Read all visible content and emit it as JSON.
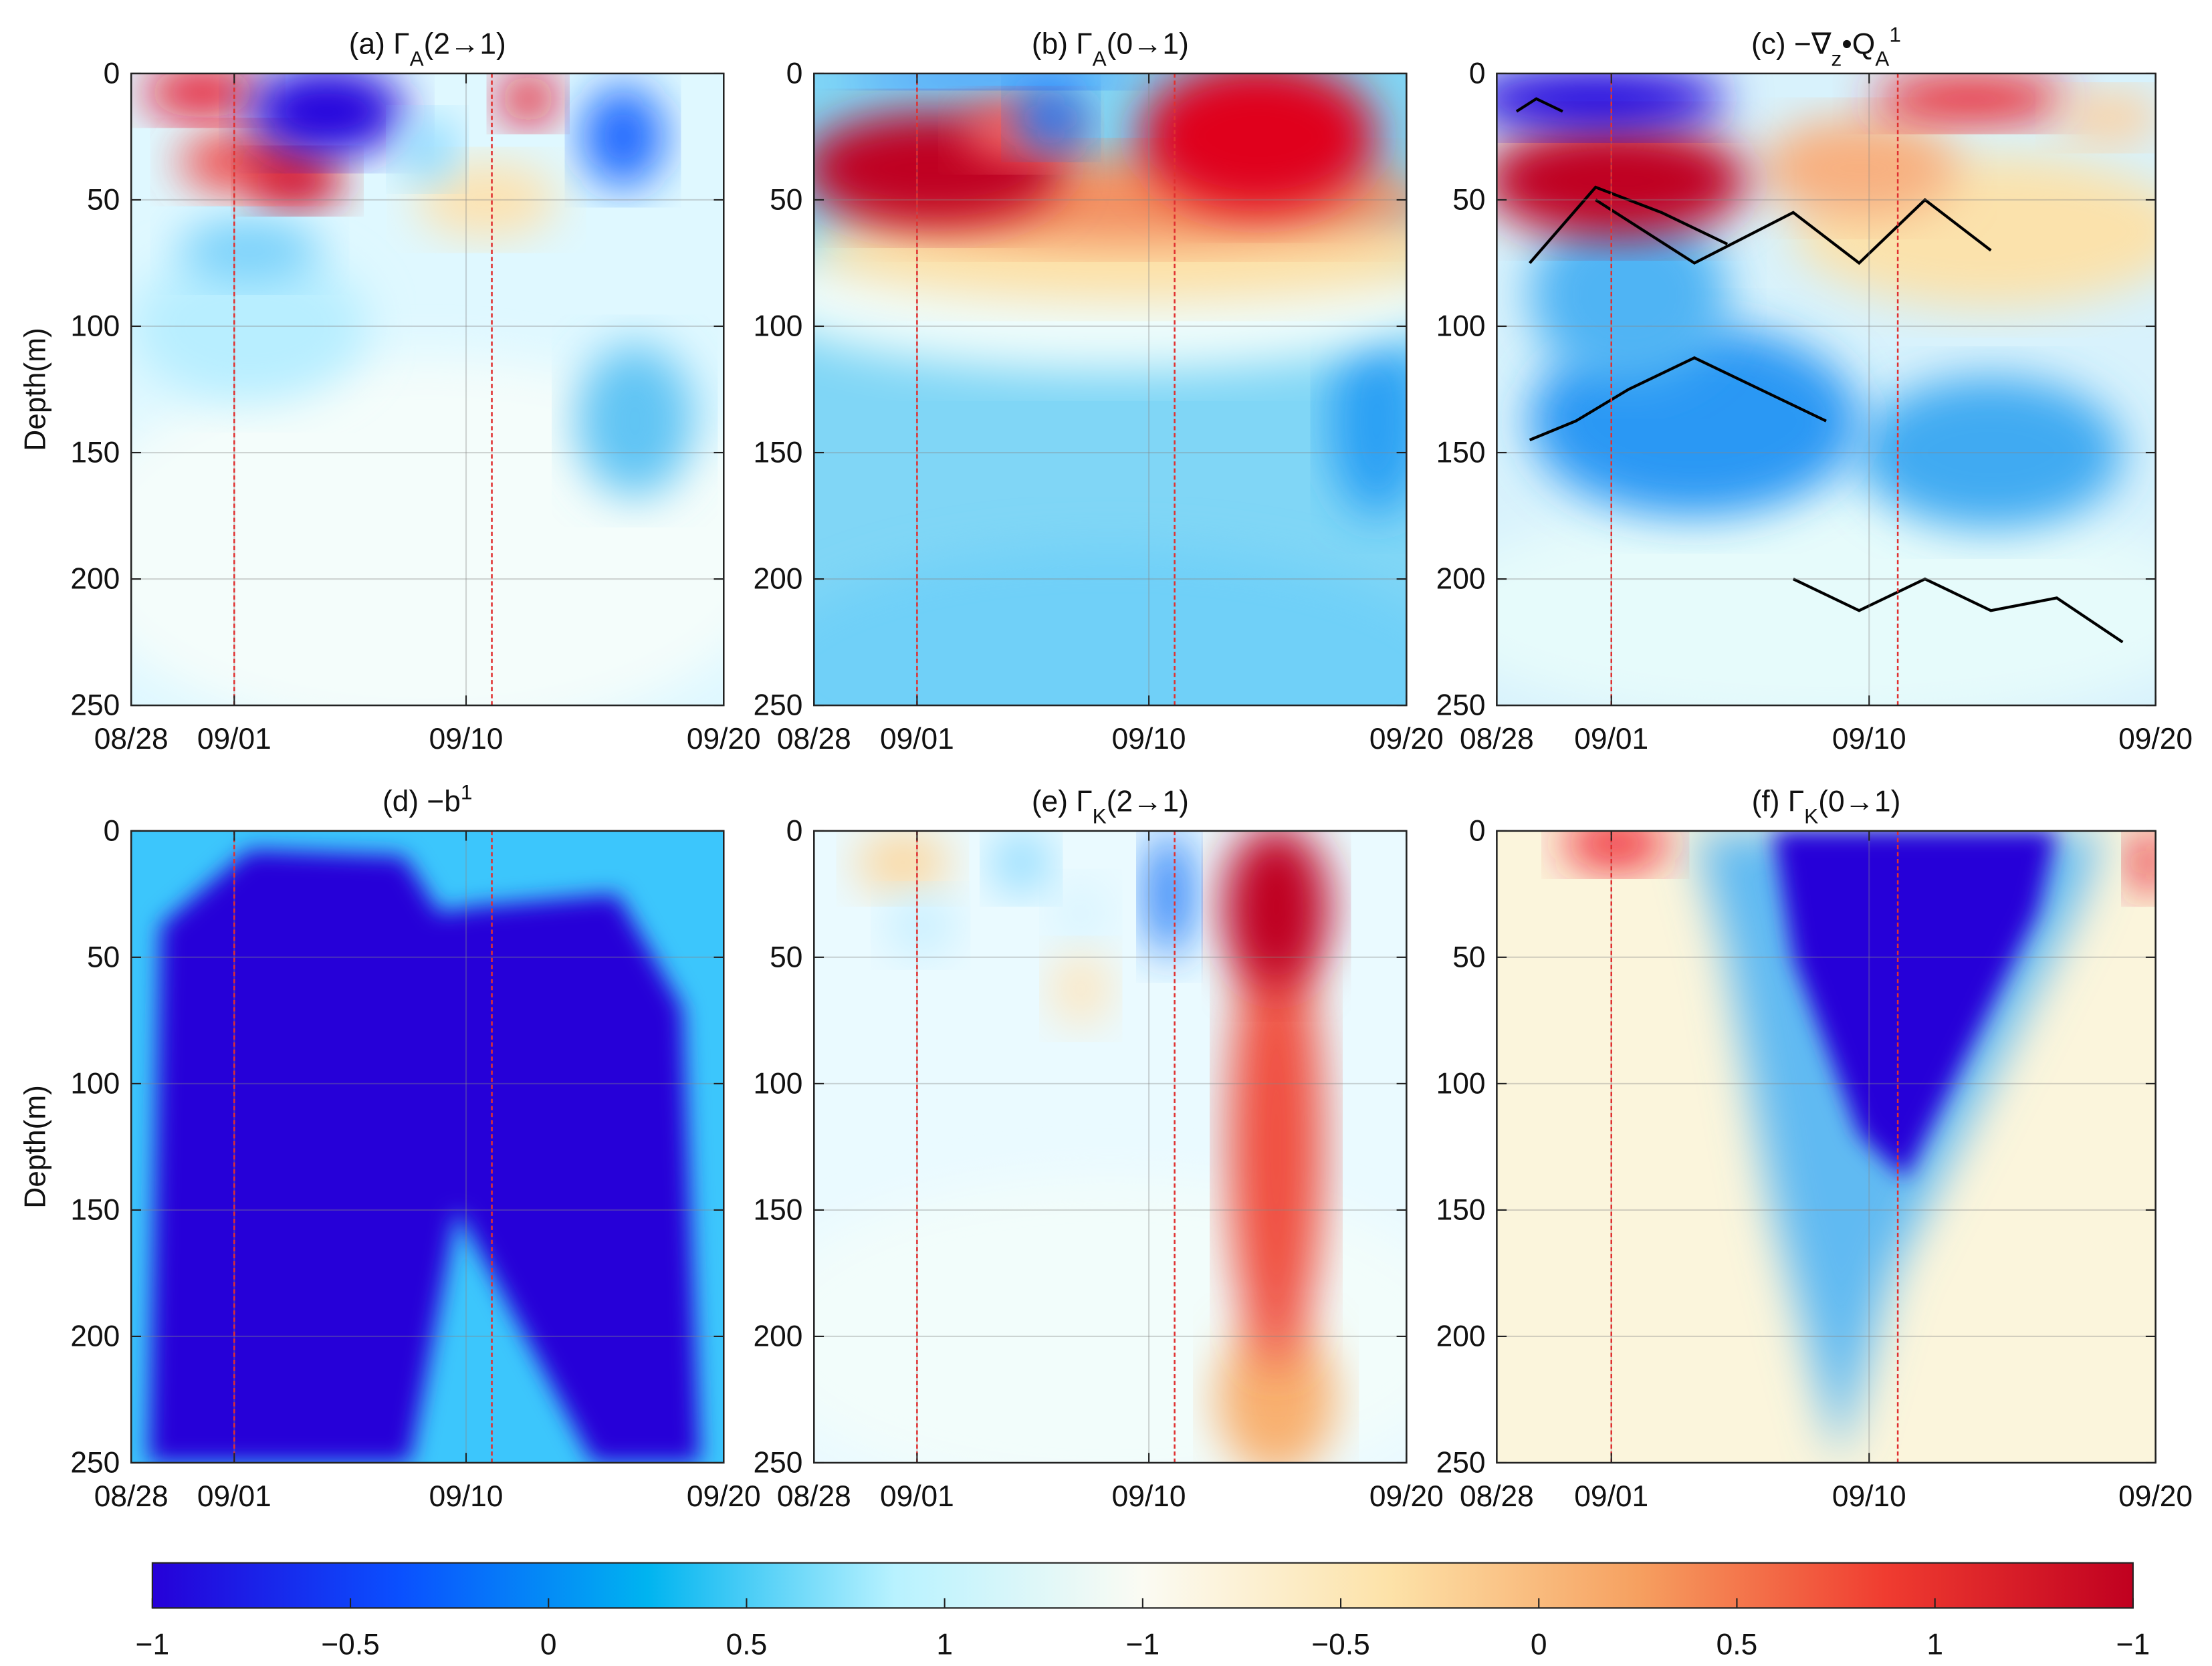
{
  "chart_data": [
    {
      "type": "heatmap",
      "title": [
        {
          "text": "(a) Γ"
        },
        {
          "text": "A",
          "shift": "sub"
        },
        {
          "text": "(2→1)"
        }
      ],
      "ylabel": "Depth(m)",
      "xlim": [
        "08/28",
        "09/20"
      ],
      "xticks": [
        "08/28",
        "09/01",
        "09/10",
        "09/20"
      ],
      "ylim": [
        0,
        250
      ],
      "y_reversed": true,
      "yticks": [
        0,
        50,
        100,
        150,
        200,
        250
      ],
      "grid": true,
      "vlines": [
        "09/01",
        "09/11"
      ],
      "vline_color": "#e03030"
    },
    {
      "type": "heatmap",
      "title": [
        {
          "text": "(b) Γ"
        },
        {
          "text": "A",
          "shift": "sub"
        },
        {
          "text": "(0→1)"
        }
      ],
      "xlim": [
        "08/28",
        "09/20"
      ],
      "xticks": [
        "08/28",
        "09/01",
        "09/10",
        "09/20"
      ],
      "ylim": [
        0,
        250
      ],
      "y_reversed": true,
      "yticks": [
        0,
        50,
        100,
        150,
        200,
        250
      ],
      "grid": true,
      "vlines": [
        "09/01",
        "09/11"
      ],
      "vline_color": "#e03030"
    },
    {
      "type": "heatmap",
      "title": [
        {
          "text": "(c) −∇"
        },
        {
          "text": "z",
          "shift": "sub"
        },
        {
          "text": "•Q"
        },
        {
          "text": "A",
          "shift": "sub"
        },
        {
          "text": "1",
          "shift": "super"
        }
      ],
      "xlim": [
        "08/28",
        "09/20"
      ],
      "xticks": [
        "08/28",
        "09/01",
        "09/10",
        "09/20"
      ],
      "ylim": [
        0,
        250
      ],
      "y_reversed": true,
      "yticks": [
        0,
        50,
        100,
        150,
        200,
        250
      ],
      "grid": true,
      "vlines": [
        "09/01",
        "09/11"
      ],
      "vline_color": "#e03030"
    },
    {
      "type": "heatmap",
      "title": [
        {
          "text": "(d) −b"
        },
        {
          "text": "1",
          "shift": "super"
        }
      ],
      "ylabel": "Depth(m)",
      "xlim": [
        "08/28",
        "09/20"
      ],
      "xticks": [
        "08/28",
        "09/01",
        "09/10",
        "09/20"
      ],
      "ylim": [
        0,
        250
      ],
      "y_reversed": true,
      "yticks": [
        0,
        50,
        100,
        150,
        200,
        250
      ],
      "grid": true,
      "vlines": [
        "09/01",
        "09/11"
      ],
      "vline_color": "#e03030"
    },
    {
      "type": "heatmap",
      "title": [
        {
          "text": "(e) Γ"
        },
        {
          "text": "K",
          "shift": "sub"
        },
        {
          "text": "(2→1)"
        }
      ],
      "xlim": [
        "08/28",
        "09/20"
      ],
      "xticks": [
        "08/28",
        "09/01",
        "09/10",
        "09/20"
      ],
      "ylim": [
        0,
        250
      ],
      "y_reversed": true,
      "yticks": [
        0,
        50,
        100,
        150,
        200,
        250
      ],
      "grid": true,
      "vlines": [
        "09/01",
        "09/11"
      ],
      "vline_color": "#e03030"
    },
    {
      "type": "heatmap",
      "title": [
        {
          "text": "(f) Γ"
        },
        {
          "text": "K",
          "shift": "sub"
        },
        {
          "text": "(0→1)"
        }
      ],
      "xlim": [
        "08/28",
        "09/20"
      ],
      "xticks": [
        "08/28",
        "09/01",
        "09/10",
        "09/20"
      ],
      "ylim": [
        0,
        250
      ],
      "y_reversed": true,
      "yticks": [
        0,
        50,
        100,
        150,
        200,
        250
      ],
      "grid": true,
      "vlines": [
        "09/01",
        "09/11"
      ],
      "vline_color": "#e03030"
    }
  ],
  "colorbar": {
    "colormap": [
      "#2600d8",
      "#0a50ff",
      "#00b4f0",
      "#b8f2ff",
      "#fbfbf3",
      "#fde2a8",
      "#f6a060",
      "#f03c30",
      "#c00020"
    ],
    "ticks": [
      {
        "value": -1,
        "label": "−1"
      },
      {
        "value": -0.5,
        "label": "−0.5"
      },
      0,
      0.5,
      1,
      {
        "value": -1,
        "label": "−1"
      },
      {
        "value": -0.5,
        "label": "−0.5"
      },
      0,
      0.5,
      1,
      {
        "value": -1,
        "label": "−1"
      }
    ]
  }
}
